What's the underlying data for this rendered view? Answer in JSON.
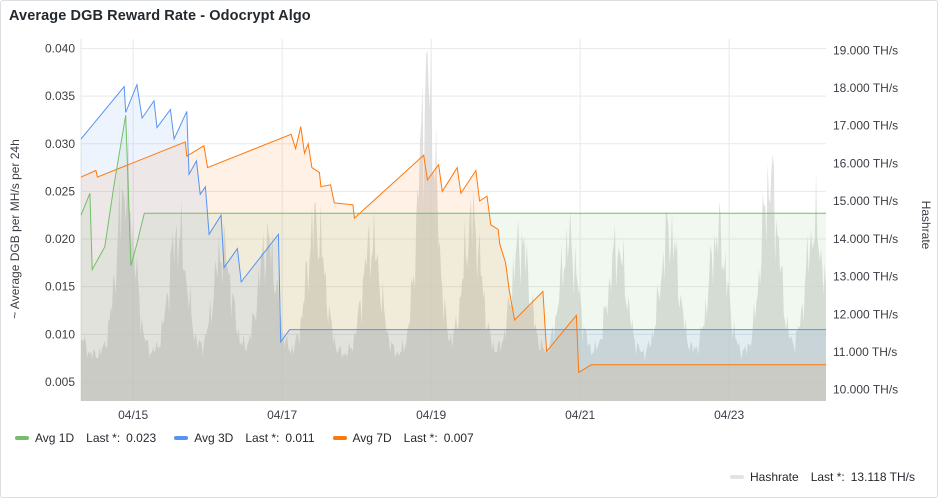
{
  "panel": {
    "title": "Average DGB Reward Rate - Odocrypt Algo"
  },
  "chart_data": {
    "type": "line",
    "title": "Average DGB Reward Rate - Odocrypt Algo",
    "xlabel": "",
    "ylabel": "~ Average DGB per MH/s per 24h",
    "y2label": "Hashrate",
    "x_ticks": [
      "04/15",
      "04/17",
      "04/19",
      "04/21",
      "04/23"
    ],
    "x_range_days": [
      14.3,
      24.3
    ],
    "ylim": [
      0.003,
      0.041
    ],
    "y_ticks": [
      "0.005",
      "0.010",
      "0.015",
      "0.020",
      "0.025",
      "0.030",
      "0.035",
      "0.040"
    ],
    "y2lim": [
      9.7,
      19.3
    ],
    "y2_ticks": [
      "10.000 TH/s",
      "11.000 TH/s",
      "12.000 TH/s",
      "13.000 TH/s",
      "14.000 TH/s",
      "15.000 TH/s",
      "16.000 TH/s",
      "17.000 TH/s",
      "18.000 TH/s",
      "19.000 TH/s"
    ],
    "legend_position": "bottom-left",
    "grid": true,
    "series": [
      {
        "name": "Avg 1D",
        "color": "#73bf69",
        "last_label": "Last *:",
        "last_value": "0.023",
        "points": [
          [
            14.3,
            0.0225
          ],
          [
            14.42,
            0.0248
          ],
          [
            14.45,
            0.0168
          ],
          [
            14.62,
            0.0192
          ],
          [
            14.75,
            0.026
          ],
          [
            14.9,
            0.033
          ],
          [
            14.97,
            0.0172
          ],
          [
            15.05,
            0.0195
          ],
          [
            15.15,
            0.0227
          ],
          [
            24.3,
            0.0227
          ]
        ]
      },
      {
        "name": "Avg 3D",
        "color": "#5794f2",
        "last_label": "Last *:",
        "last_value": "0.011",
        "points": [
          [
            14.3,
            0.0305
          ],
          [
            14.88,
            0.036
          ],
          [
            14.9,
            0.0333
          ],
          [
            15.05,
            0.0362
          ],
          [
            15.12,
            0.0327
          ],
          [
            15.28,
            0.0345
          ],
          [
            15.32,
            0.0317
          ],
          [
            15.5,
            0.0336
          ],
          [
            15.55,
            0.0305
          ],
          [
            15.72,
            0.0334
          ],
          [
            15.75,
            0.0268
          ],
          [
            15.85,
            0.0282
          ],
          [
            15.9,
            0.0247
          ],
          [
            15.97,
            0.0255
          ],
          [
            16.02,
            0.0205
          ],
          [
            16.18,
            0.0225
          ],
          [
            16.22,
            0.017
          ],
          [
            16.4,
            0.019
          ],
          [
            16.45,
            0.0155
          ],
          [
            16.95,
            0.0205
          ],
          [
            16.98,
            0.0092
          ],
          [
            17.1,
            0.0105
          ],
          [
            24.3,
            0.0105
          ]
        ]
      },
      {
        "name": "Avg 7D",
        "color": "#ff780a",
        "last_label": "Last *:",
        "last_value": "0.007",
        "points": [
          [
            14.3,
            0.0265
          ],
          [
            14.5,
            0.0272
          ],
          [
            14.52,
            0.0265
          ],
          [
            15.7,
            0.0302
          ],
          [
            15.72,
            0.0287
          ],
          [
            15.95,
            0.0298
          ],
          [
            16.0,
            0.0275
          ],
          [
            17.12,
            0.031
          ],
          [
            17.18,
            0.0295
          ],
          [
            17.25,
            0.0318
          ],
          [
            17.3,
            0.029
          ],
          [
            17.35,
            0.03
          ],
          [
            17.4,
            0.0275
          ],
          [
            17.5,
            0.027
          ],
          [
            17.52,
            0.0255
          ],
          [
            17.65,
            0.0257
          ],
          [
            17.7,
            0.0238
          ],
          [
            17.95,
            0.0236
          ],
          [
            17.97,
            0.0222
          ],
          [
            18.9,
            0.0288
          ],
          [
            18.95,
            0.0262
          ],
          [
            19.1,
            0.0278
          ],
          [
            19.15,
            0.025
          ],
          [
            19.35,
            0.0275
          ],
          [
            19.4,
            0.0248
          ],
          [
            19.6,
            0.0272
          ],
          [
            19.65,
            0.024
          ],
          [
            19.75,
            0.0245
          ],
          [
            19.8,
            0.0215
          ],
          [
            19.9,
            0.021
          ],
          [
            19.92,
            0.0195
          ],
          [
            20.0,
            0.0175
          ],
          [
            20.05,
            0.0145
          ],
          [
            20.12,
            0.0115
          ],
          [
            20.5,
            0.0145
          ],
          [
            20.55,
            0.0082
          ],
          [
            20.95,
            0.012
          ],
          [
            20.98,
            0.006
          ],
          [
            21.15,
            0.0068
          ],
          [
            24.3,
            0.0068
          ]
        ]
      }
    ],
    "hashrate_series": {
      "name": "Hashrate",
      "color": "#dfdfdf",
      "last_label": "Last *:",
      "last_value": "13.118 TH/s"
    }
  }
}
